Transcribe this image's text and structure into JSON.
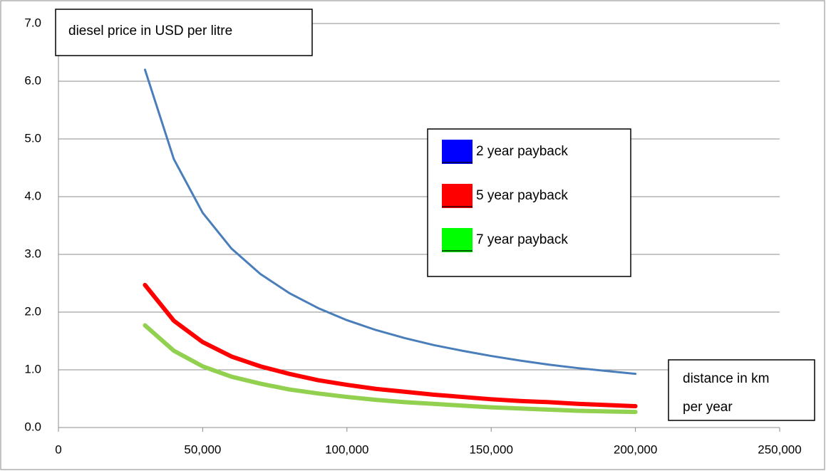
{
  "chart_data": {
    "type": "line",
    "ylabel": "diesel price in USD per litre",
    "xlabel": [
      "distance in km",
      "per year"
    ],
    "x": [
      30000,
      40000,
      50000,
      60000,
      70000,
      80000,
      90000,
      100000,
      110000,
      120000,
      130000,
      140000,
      150000,
      160000,
      170000,
      180000,
      190000,
      200000
    ],
    "series": [
      {
        "name": "2 year payback",
        "color": "#4a7ebb",
        "legend_color": "#0000ff",
        "values": [
          6.2,
          4.65,
          3.72,
          3.1,
          2.66,
          2.33,
          2.07,
          1.86,
          1.69,
          1.55,
          1.43,
          1.33,
          1.24,
          1.16,
          1.09,
          1.03,
          0.98,
          0.93
        ]
      },
      {
        "name": "5 year payback",
        "color": "#ff0000",
        "legend_color": "#ff0000",
        "values": [
          2.47,
          1.85,
          1.48,
          1.23,
          1.06,
          0.93,
          0.82,
          0.74,
          0.67,
          0.62,
          0.57,
          0.53,
          0.49,
          0.46,
          0.44,
          0.41,
          0.39,
          0.37
        ]
      },
      {
        "name": "7 year payback",
        "color": "#92d050",
        "legend_color": "#00ff00",
        "values": [
          1.77,
          1.33,
          1.06,
          0.88,
          0.76,
          0.66,
          0.59,
          0.53,
          0.48,
          0.44,
          0.41,
          0.38,
          0.35,
          0.33,
          0.31,
          0.29,
          0.28,
          0.27
        ]
      }
    ],
    "xlim": [
      0,
      250000
    ],
    "xticks": [
      0,
      {
        "value": 50000,
        "label": "50,000"
      },
      {
        "value": 100000,
        "label": "100,000"
      },
      {
        "value": 150000,
        "label": "150,000"
      },
      {
        "value": 200000,
        "label": "200,000"
      },
      {
        "value": 250000,
        "label": "250,000"
      }
    ],
    "ylim": [
      0,
      7
    ],
    "yticks": [
      {
        "value": 0,
        "label": "0.0"
      },
      {
        "value": 1,
        "label": "1.0"
      },
      {
        "value": 2,
        "label": "2.0"
      },
      {
        "value": 3,
        "label": "3.0"
      },
      {
        "value": 4,
        "label": "4.0"
      },
      {
        "value": 5,
        "label": "5.0"
      },
      {
        "value": 6,
        "label": "6.0"
      },
      {
        "value": 7,
        "label": "7.0"
      }
    ],
    "grid": true
  }
}
